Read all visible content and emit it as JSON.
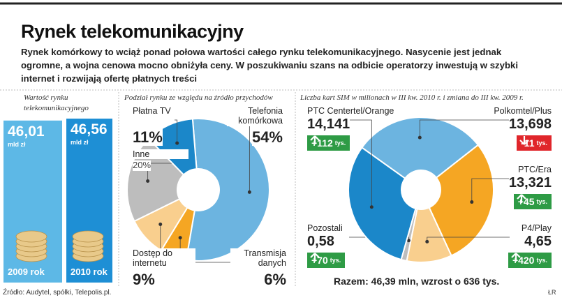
{
  "title": "Rynek telekomunikacyjny",
  "subtitle_lines": [
    "Rynek komórkowy to wciąż ponad połowa wartości całego rynku telekomunikacyjnego. Nasycenie jest jednak",
    "ogromne, a wojna cenowa mocno obniżyła ceny. W poszukiwaniu szans na odbicie operatorzy inwestują w szybki",
    "internet i rozwijają ofertę płatnych treści"
  ],
  "source": "Źródło: Audytel, spółki, Telepolis.pl.",
  "credit": "ŁR",
  "chart_data": [
    {
      "type": "bar",
      "title": "Wartość rynku telekomunikacyjnego",
      "categories": [
        "2009 rok",
        "2010 rok"
      ],
      "values": [
        46.01,
        46.56
      ],
      "value_labels": [
        "46,01",
        "46,56"
      ],
      "unit": "mld zł",
      "colors": [
        "#5db8e6",
        "#1e8fd5"
      ]
    },
    {
      "type": "pie",
      "title": "Podział rynku ze względu na źródło przychodów",
      "categories": [
        "Telefonia komórkowa",
        "Transmisja danych",
        "Dostęp do internetu",
        "Inne",
        "Płatna TV"
      ],
      "values": [
        54,
        6,
        9,
        20,
        11
      ],
      "value_labels": [
        "54%",
        "6%",
        "9%",
        "20%",
        "11%"
      ],
      "colors": [
        "#6cb4e0",
        "#f5a623",
        "#f9cf8e",
        "#bdbdbd",
        "#1b87c9"
      ]
    },
    {
      "type": "pie",
      "title": "Liczba kart SIM w milionach w III kw. 2010 r. i zmiana do III kw. 2009 r.",
      "categories": [
        "Polkomtel/Plus",
        "PTC/Era",
        "P4/Play",
        "Pozostali",
        "PTC Centertel/Orange"
      ],
      "values": [
        13.698,
        13.321,
        4.65,
        0.58,
        14.141
      ],
      "value_labels": [
        "13,698",
        "13,321",
        "4,65",
        "0,58",
        "14,141"
      ],
      "changes": [
        -11,
        45,
        420,
        70,
        112
      ],
      "change_labels": [
        "-11",
        "+45",
        "+420",
        "+70",
        "+112"
      ],
      "change_unit": "tys.",
      "colors": [
        "#6cb4e0",
        "#f5a623",
        "#f9cf8e",
        "#bdbdbd",
        "#1b87c9"
      ],
      "total_label": "Razem: 46,39 mln, wzrost o 636 tys."
    }
  ]
}
